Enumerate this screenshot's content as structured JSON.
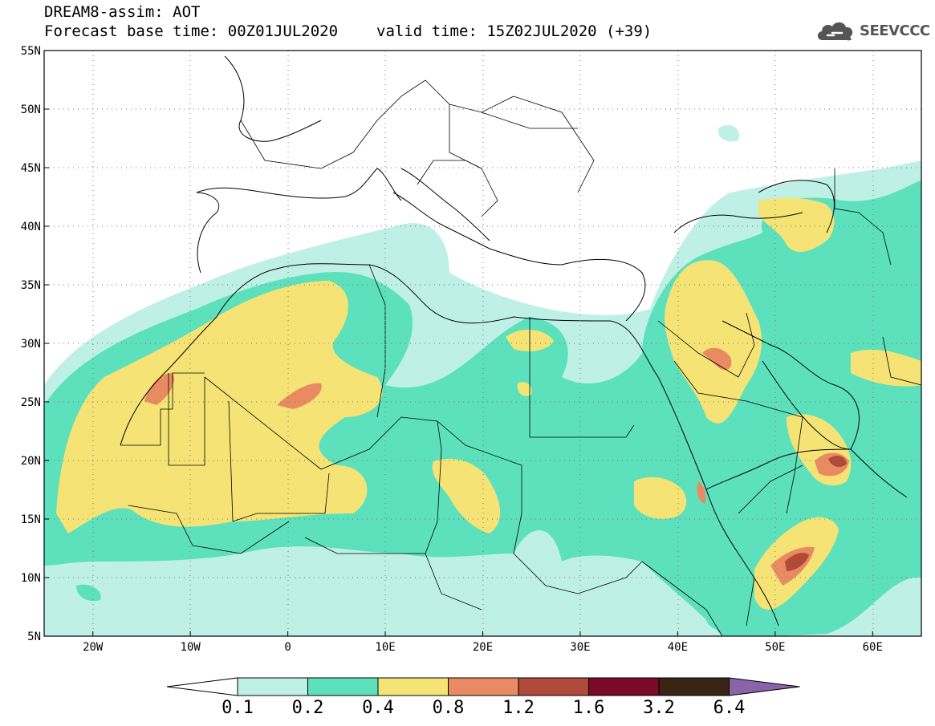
{
  "header": {
    "title": "DREAM8-assim: AOT",
    "base_time": "Forecast base time: 00Z01JUL2020",
    "valid_time": "valid time: 15Z02JUL2020 (+39)"
  },
  "logo": {
    "text": "SEEVCCC",
    "icon": "cloud-icon"
  },
  "map": {
    "lon_range": [
      -25,
      65
    ],
    "lat_range": [
      5,
      55
    ],
    "lat_ticks": [
      "5N",
      "10N",
      "15N",
      "20N",
      "25N",
      "30N",
      "35N",
      "40N",
      "45N",
      "50N",
      "55N"
    ],
    "lon_ticks": [
      "20W",
      "10W",
      "0",
      "10E",
      "20E",
      "30E",
      "40E",
      "50E",
      "60E"
    ]
  },
  "colorbar": {
    "labels": [
      "0.1",
      "0.2",
      "0.4",
      "0.8",
      "1.2",
      "1.6",
      "3.2",
      "6.4"
    ],
    "colors": [
      "#ffffff",
      "#bff0e6",
      "#5de1bd",
      "#f5e475",
      "#e98b62",
      "#b04a3a",
      "#7a0a2a",
      "#3a2414",
      "#8a63a8"
    ]
  },
  "fills": {
    "c1": "#bff0e6",
    "c2": "#5de1bd",
    "c3": "#f5e475",
    "c4": "#e98b62",
    "c5": "#b04a3a"
  }
}
